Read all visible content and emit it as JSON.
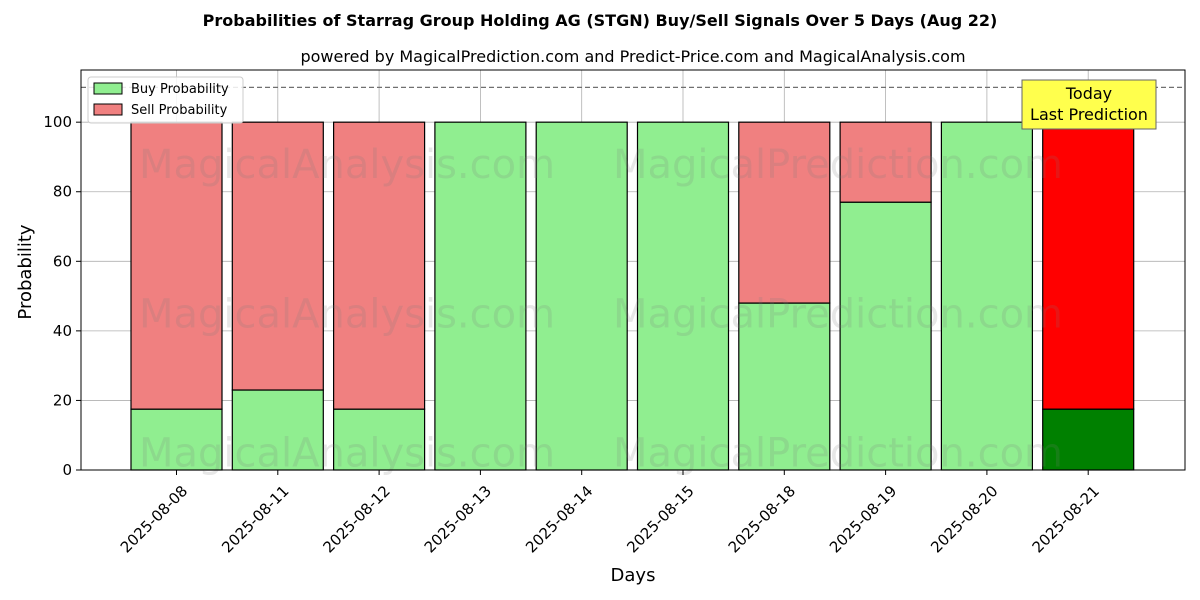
{
  "chart_data": {
    "type": "bar",
    "stacked": true,
    "title": "Probabilities of Starrag Group Holding AG (STGN) Buy/Sell Signals Over 5 Days (Aug 22)",
    "subtitle": "powered by MagicalPrediction.com and Predict-Price.com and MagicalAnalysis.com",
    "xlabel": "Days",
    "ylabel": "Probability",
    "ylim": [
      0,
      115
    ],
    "yticks": [
      0,
      20,
      40,
      60,
      80,
      100
    ],
    "grid": true,
    "reference_line": 110,
    "categories": [
      "2025-08-08",
      "2025-08-11",
      "2025-08-12",
      "2025-08-13",
      "2025-08-14",
      "2025-08-15",
      "2025-08-18",
      "2025-08-19",
      "2025-08-20",
      "2025-08-21"
    ],
    "series": [
      {
        "name": "Buy Probability",
        "color": "#90ee90",
        "values": [
          17.5,
          23,
          17.5,
          100,
          100,
          100,
          48,
          77,
          100,
          17.5
        ]
      },
      {
        "name": "Sell Probability",
        "color": "#f08080",
        "values": [
          82.5,
          77,
          82.5,
          0,
          0,
          0,
          52,
          23,
          0,
          82.5
        ]
      }
    ],
    "highlight": {
      "index": 9,
      "buy_color": "#008000",
      "sell_color": "#ff0000"
    },
    "legend": {
      "position": "top-left",
      "entries": [
        "Buy Probability",
        "Sell Probability"
      ]
    },
    "annotation": {
      "line1": "Today",
      "line2": "Last Prediction",
      "color": "#ffff4d"
    },
    "watermarks": [
      "MagicalAnalysis.com",
      "MagicalPrediction.com"
    ]
  }
}
